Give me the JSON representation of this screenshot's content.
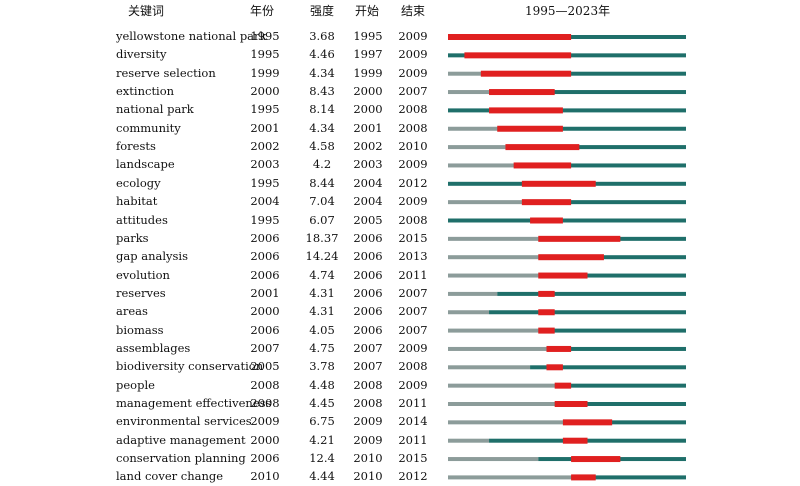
{
  "chart_data": {
    "type": "table",
    "headers": {
      "keyword": "关键词",
      "year": "年份",
      "strength": "强度",
      "begin": "开始",
      "end": "结束",
      "timeline": "1995—2023年"
    },
    "timeline_range": [
      1995,
      2023
    ],
    "colors": {
      "before": "#8c9c9a",
      "after": "#1f6f6a",
      "burst": "#e02020"
    },
    "rows": [
      {
        "keyword": "yellowstone national park",
        "year": "1995",
        "strength": "3.68",
        "begin": "1995",
        "end": "2009"
      },
      {
        "keyword": "diversity",
        "year": "1995",
        "strength": "4.46",
        "begin": "1997",
        "end": "2009"
      },
      {
        "keyword": "reserve selection",
        "year": "1999",
        "strength": "4.34",
        "begin": "1999",
        "end": "2009"
      },
      {
        "keyword": "extinction",
        "year": "2000",
        "strength": "8.43",
        "begin": "2000",
        "end": "2007"
      },
      {
        "keyword": "national park",
        "year": "1995",
        "strength": "8.14",
        "begin": "2000",
        "end": "2008"
      },
      {
        "keyword": "community",
        "year": "2001",
        "strength": "4.34",
        "begin": "2001",
        "end": "2008"
      },
      {
        "keyword": "forests",
        "year": "2002",
        "strength": "4.58",
        "begin": "2002",
        "end": "2010"
      },
      {
        "keyword": "landscape",
        "year": "2003",
        "strength": "4.2",
        "begin": "2003",
        "end": "2009"
      },
      {
        "keyword": "ecology",
        "year": "1995",
        "strength": "8.44",
        "begin": "2004",
        "end": "2012"
      },
      {
        "keyword": "habitat",
        "year": "2004",
        "strength": "7.04",
        "begin": "2004",
        "end": "2009"
      },
      {
        "keyword": "attitudes",
        "year": "1995",
        "strength": "6.07",
        "begin": "2005",
        "end": "2008"
      },
      {
        "keyword": "parks",
        "year": "2006",
        "strength": "18.37",
        "begin": "2006",
        "end": "2015"
      },
      {
        "keyword": "gap analysis",
        "year": "2006",
        "strength": "14.24",
        "begin": "2006",
        "end": "2013"
      },
      {
        "keyword": "evolution",
        "year": "2006",
        "strength": "4.74",
        "begin": "2006",
        "end": "2011"
      },
      {
        "keyword": "reserves",
        "year": "2001",
        "strength": "4.31",
        "begin": "2006",
        "end": "2007"
      },
      {
        "keyword": "areas",
        "year": "2000",
        "strength": "4.31",
        "begin": "2006",
        "end": "2007"
      },
      {
        "keyword": "biomass",
        "year": "2006",
        "strength": "4.05",
        "begin": "2006",
        "end": "2007"
      },
      {
        "keyword": "assemblages",
        "year": "2007",
        "strength": "4.75",
        "begin": "2007",
        "end": "2009"
      },
      {
        "keyword": "biodiversity conservation",
        "year": "2005",
        "strength": "3.78",
        "begin": "2007",
        "end": "2008"
      },
      {
        "keyword": "people",
        "year": "2008",
        "strength": "4.48",
        "begin": "2008",
        "end": "2009"
      },
      {
        "keyword": "management effectiveness",
        "year": "2008",
        "strength": "4.45",
        "begin": "2008",
        "end": "2011"
      },
      {
        "keyword": "environmental services",
        "year": "2009",
        "strength": "6.75",
        "begin": "2009",
        "end": "2014"
      },
      {
        "keyword": "adaptive management",
        "year": "2000",
        "strength": "4.21",
        "begin": "2009",
        "end": "2011"
      },
      {
        "keyword": "conservation planning",
        "year": "2006",
        "strength": "12.4",
        "begin": "2010",
        "end": "2015"
      },
      {
        "keyword": "land cover change",
        "year": "2010",
        "strength": "4.44",
        "begin": "2010",
        "end": "2012"
      }
    ]
  }
}
